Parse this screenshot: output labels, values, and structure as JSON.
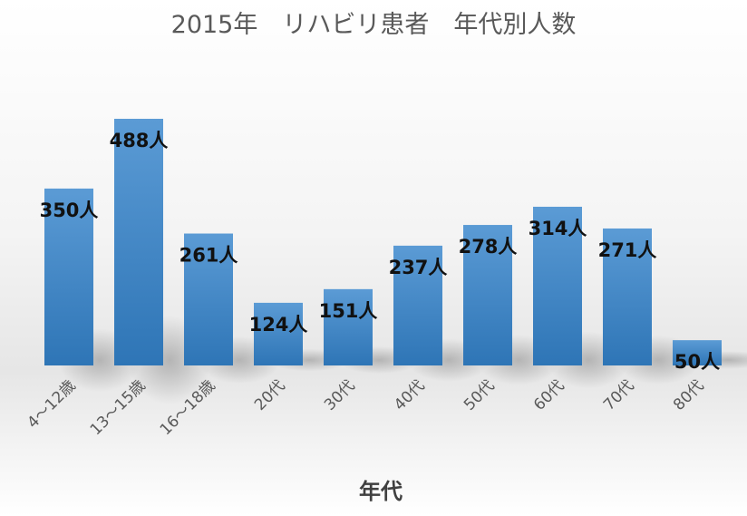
{
  "chart_data": {
    "type": "bar",
    "title": "2015年　リハビリ患者　年代別人数",
    "xlabel": "年代",
    "ylabel": "",
    "categories": [
      "4～12歳",
      "13～15歳",
      "16～18歳",
      "20代",
      "30代",
      "40代",
      "50代",
      "60代",
      "70代",
      "80代"
    ],
    "values": [
      350,
      488,
      261,
      124,
      151,
      237,
      278,
      314,
      271,
      50
    ],
    "data_labels": [
      "350人",
      "488人",
      "261人",
      "124人",
      "151人",
      "237人",
      "278人",
      "314人",
      "271人",
      "50人"
    ],
    "ylim": [
      0,
      500
    ],
    "grid": false,
    "legend": "none",
    "colors": {
      "bar_top": "#5b9bd5",
      "bar_bottom": "#2e75b6",
      "title": "#595959",
      "tick": "#595959",
      "label": "#111111"
    }
  }
}
